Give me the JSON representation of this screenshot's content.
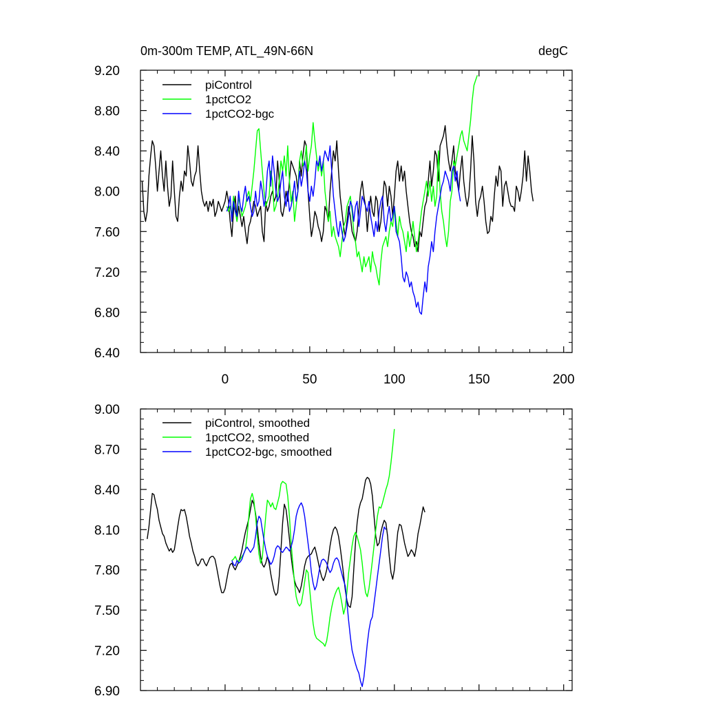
{
  "chart_data": [
    {
      "type": "line",
      "title": "0m-300m TEMP, ATL_49N-66N",
      "units": "degC",
      "xlim": [
        -50,
        205
      ],
      "ylim": [
        6.4,
        9.2
      ],
      "xticks": [
        0,
        50,
        100,
        150,
        200
      ],
      "xtick_labels": [
        "0",
        "50",
        "100",
        "150",
        "200"
      ],
      "yticks": [
        6.4,
        6.8,
        7.2,
        7.6,
        8.0,
        8.4,
        8.8,
        9.2
      ],
      "ytick_labels": [
        "6.40",
        "6.80",
        "7.20",
        "7.60",
        "8.00",
        "8.40",
        "8.80",
        "9.20"
      ],
      "legend_position": "top-left",
      "series": [
        {
          "name": "piControl",
          "color": "#000000",
          "x_start": -49,
          "values": [
            8.1,
            7.8,
            7.7,
            7.8,
            8.15,
            8.35,
            8.5,
            8.45,
            8.25,
            8.0,
            8.2,
            8.4,
            8.15,
            8.0,
            8.3,
            8.05,
            7.85,
            7.95,
            8.3,
            8.0,
            7.75,
            7.7,
            7.95,
            8.1,
            8.0,
            8.2,
            8.15,
            8.45,
            8.3,
            8.1,
            8.05,
            8.15,
            8.2,
            8.45,
            8.2,
            8.0,
            7.9,
            7.85,
            7.9,
            7.8,
            7.9,
            7.85,
            7.92,
            7.75,
            7.8,
            7.9,
            7.85,
            7.8,
            7.85,
            7.9,
            8.0,
            7.9,
            7.7,
            7.55,
            7.8,
            7.95,
            7.7,
            7.85,
            7.75,
            7.65,
            7.75,
            7.6,
            7.48,
            7.65,
            7.7,
            7.8,
            7.9,
            7.85,
            7.75,
            7.8,
            7.85,
            7.6,
            7.5,
            7.9,
            7.8,
            7.85,
            7.95,
            8.0,
            7.9,
            7.95,
            8.3,
            8.1,
            7.8,
            7.75,
            7.85,
            8.0,
            7.9,
            8.1,
            8.3,
            8.25,
            8.2,
            8.15,
            8.0,
            8.3,
            8.15,
            8.35,
            8.5,
            8.45,
            8.0,
            7.75,
            7.55,
            7.65,
            7.8,
            7.75,
            7.65,
            7.6,
            7.5,
            7.6,
            7.85,
            7.8,
            7.7,
            8.0,
            8.2,
            8.4,
            8.3,
            8.5,
            8.2,
            7.95,
            7.8,
            7.65,
            7.55,
            7.7,
            7.85,
            7.75,
            7.6,
            7.55,
            7.5,
            7.6,
            7.8,
            8.0,
            8.1,
            7.95,
            7.85,
            7.6,
            7.8,
            7.95,
            7.8,
            7.75,
            7.95,
            7.9,
            7.6,
            7.7,
            7.9,
            8.1,
            8.05,
            7.85,
            8.05,
            7.95,
            7.75,
            7.95,
            8.2,
            8.3,
            8.1,
            8.25,
            8.1,
            8.2,
            8.0,
            7.85,
            7.7,
            7.6,
            7.55,
            7.45,
            7.5,
            7.4,
            7.6,
            7.55,
            7.7,
            7.85,
            7.9,
            8.1,
            8.3,
            8.05,
            8.2,
            8.4,
            8.35,
            8.1,
            8.45,
            8.5,
            8.55,
            8.65,
            8.45,
            8.3,
            8.2,
            8.3,
            8.45,
            8.2,
            8.1,
            8.0,
            8.2,
            8.35,
            8.1,
            7.95,
            7.85,
            7.95,
            8.2,
            8.55,
            8.3,
            7.9,
            7.75,
            7.9,
            7.95,
            8.05,
            7.9,
            7.7,
            7.58,
            7.6,
            7.75,
            7.7,
            7.95,
            8.15,
            8.05,
            8.25,
            8.2,
            7.85,
            8.05,
            8.1,
            8.0,
            7.9,
            7.85,
            7.85,
            7.8,
            8.05,
            8.0,
            7.9,
            8.0,
            8.15,
            8.4,
            8.1,
            8.35,
            8.2,
            8.0,
            7.9
          ]
        },
        {
          "name": "1pctCO2",
          "color": "#00ff00",
          "x_start": 1,
          "values": [
            7.85,
            7.8,
            7.85,
            7.75,
            7.95,
            7.8,
            7.7,
            7.95,
            7.85,
            7.75,
            7.8,
            7.85,
            7.95,
            8.0,
            7.9,
            8.05,
            8.2,
            8.4,
            8.6,
            8.62,
            8.4,
            8.2,
            8.0,
            7.85,
            7.9,
            7.95,
            8.2,
            8.1,
            7.8,
            7.85,
            7.95,
            8.1,
            8.3,
            8.2,
            8.35,
            8.15,
            8.45,
            8.1,
            7.9,
            8.0,
            7.7,
            7.85,
            8.0,
            8.3,
            8.4,
            8.25,
            8.3,
            8.45,
            8.2,
            8.35,
            8.45,
            8.68,
            8.5,
            8.35,
            8.2,
            8.3,
            8.15,
            8.3,
            8.0,
            7.85,
            7.7,
            7.8,
            7.55,
            7.65,
            7.55,
            7.5,
            7.45,
            7.35,
            7.5,
            7.65,
            7.7,
            7.85,
            7.9,
            7.95,
            7.8,
            7.6,
            7.5,
            7.35,
            7.4,
            7.3,
            7.2,
            7.35,
            7.25,
            7.3,
            7.35,
            7.2,
            7.4,
            7.3,
            7.25,
            7.15,
            7.07,
            7.3,
            7.45,
            7.5,
            7.55,
            7.45,
            7.6,
            7.7,
            7.65,
            7.85,
            7.7,
            7.55,
            7.75,
            7.65,
            7.6,
            7.5,
            7.4,
            7.6,
            7.45,
            7.55,
            7.7,
            7.55,
            7.4,
            7.5,
            7.65,
            7.8,
            7.9,
            8.0,
            8.1,
            7.95,
            8.1,
            7.9,
            8.05,
            7.85,
            7.95,
            8.4,
            8.0,
            7.8,
            7.7,
            7.55,
            7.45,
            7.6,
            7.9,
            8.0,
            8.3,
            8.25,
            8.35,
            8.45,
            8.55,
            8.6,
            8.5,
            8.45,
            8.4,
            8.55,
            8.7,
            8.9,
            9.05,
            9.1,
            9.15
          ]
        },
        {
          "name": "1pctCO2-bgc",
          "color": "#0000ff",
          "x_start": 1,
          "values": [
            7.8,
            7.85,
            7.95,
            7.7,
            7.9,
            7.8,
            7.75,
            8.0,
            7.85,
            7.8,
            7.95,
            8.05,
            7.9,
            7.95,
            7.85,
            7.75,
            7.8,
            8.0,
            7.85,
            7.9,
            8.1,
            8.0,
            7.85,
            7.95,
            8.2,
            8.3,
            8.05,
            8.35,
            8.2,
            8.0,
            7.9,
            7.95,
            8.1,
            8.2,
            7.95,
            7.85,
            8.0,
            7.8,
            7.85,
            7.95,
            8.1,
            7.9,
            8.0,
            8.2,
            8.05,
            8.15,
            8.3,
            8.2,
            8.0,
            7.9,
            8.05,
            7.95,
            8.1,
            8.3,
            8.25,
            8.35,
            8.2,
            8.3,
            8.4,
            8.35,
            8.3,
            8.45,
            8.2,
            7.95,
            7.8,
            7.65,
            7.55,
            7.7,
            7.6,
            7.5,
            7.55,
            7.65,
            7.75,
            7.9,
            7.85,
            7.7,
            7.85,
            7.9,
            7.65,
            7.8,
            7.95,
            7.9,
            7.85,
            7.8,
            7.9,
            7.75,
            7.65,
            7.55,
            7.7,
            7.6,
            7.8,
            7.9,
            7.95,
            7.7,
            7.6,
            7.75,
            7.85,
            7.7,
            7.75,
            7.85,
            7.6,
            7.55,
            7.5,
            7.35,
            7.15,
            7.1,
            7.2,
            7.15,
            7.05,
            7.1,
            7.0,
            6.95,
            6.85,
            6.9,
            6.8,
            6.78,
            6.95,
            7.1,
            7.0,
            7.25,
            7.35,
            7.5,
            7.4,
            7.6,
            7.75,
            7.85,
            7.95,
            8.05,
            8.1,
            8.2,
            8.15,
            8.1,
            8.0,
            8.2,
            8.25,
            8.1,
            8.2,
            8.0,
            7.9
          ]
        }
      ]
    },
    {
      "type": "line",
      "title": "",
      "xlim": [
        -50,
        205
      ],
      "ylim": [
        6.9,
        9.0
      ],
      "xticks": [
        0,
        50,
        100,
        150,
        200
      ],
      "yticks": [
        6.9,
        7.2,
        7.5,
        7.8,
        8.1,
        8.4,
        8.7,
        9.0
      ],
      "ytick_labels": [
        "6.90",
        "7.20",
        "7.50",
        "7.80",
        "8.10",
        "8.40",
        "8.70",
        "9.00"
      ],
      "legend_position": "top-left",
      "series": [
        {
          "name": "piControl, smoothed",
          "color": "#000000",
          "x_start": -46,
          "values": [
            8.03,
            8.12,
            8.25,
            8.37,
            8.36,
            8.3,
            8.25,
            8.17,
            8.12,
            8.07,
            8.05,
            8.0,
            7.97,
            7.94,
            7.96,
            7.93,
            7.95,
            8.03,
            8.12,
            8.2,
            8.25,
            8.24,
            8.25,
            8.2,
            8.13,
            8.05,
            8.0,
            7.94,
            7.9,
            7.85,
            7.83,
            7.85,
            7.88,
            7.88,
            7.85,
            7.83,
            7.86,
            7.89,
            7.9,
            7.9,
            7.88,
            7.82,
            7.75,
            7.68,
            7.63,
            7.63,
            7.66,
            7.73,
            7.8,
            7.84,
            7.85,
            7.82,
            7.8,
            7.83,
            7.86,
            7.9,
            7.95,
            8.02,
            8.08,
            8.13,
            8.18,
            8.25,
            8.32,
            8.29,
            8.22,
            8.12,
            8.0,
            7.9,
            7.84,
            7.82,
            7.85,
            7.9,
            7.85,
            7.77,
            7.7,
            7.64,
            7.61,
            7.63,
            7.75,
            7.95,
            8.15,
            8.29,
            8.25,
            8.15,
            8.03,
            7.9,
            7.8,
            7.72,
            7.68,
            7.66,
            7.63,
            7.68,
            7.75,
            7.83,
            7.88,
            7.9,
            7.91,
            7.92,
            7.95,
            7.97,
            7.92,
            7.86,
            7.8,
            7.75,
            7.72,
            7.75,
            7.8,
            7.88,
            7.98,
            8.05,
            8.1,
            8.12,
            8.1,
            8.05,
            7.97,
            7.87,
            7.76,
            7.65,
            7.57,
            7.53,
            7.52,
            7.6,
            7.8,
            8.0,
            8.15,
            8.25,
            8.3,
            8.33,
            8.4,
            8.47,
            8.49,
            8.48,
            8.44,
            8.35,
            8.2,
            8.05,
            7.98,
            8.0,
            8.08,
            8.13,
            8.17,
            8.15,
            8.05,
            7.9,
            7.78,
            7.73,
            7.8,
            7.95,
            8.08,
            8.14,
            8.13,
            8.07,
            8.0,
            7.95,
            7.9,
            7.92,
            7.95,
            7.93,
            7.9,
            7.97,
            8.07,
            8.13,
            8.2,
            8.27,
            8.23
          ]
        },
        {
          "name": "1pctCO2, smoothed",
          "color": "#00ff00",
          "x_start": 4,
          "values": [
            7.87,
            7.88,
            7.9,
            7.87,
            7.86,
            7.88,
            7.9,
            7.92,
            7.95,
            8.05,
            8.2,
            8.33,
            8.37,
            8.32,
            8.2,
            8.05,
            7.92,
            7.85,
            7.89,
            8.05,
            8.2,
            8.32,
            8.3,
            8.27,
            8.3,
            8.26,
            8.25,
            8.3,
            8.35,
            8.44,
            8.46,
            8.45,
            8.44,
            8.35,
            8.2,
            8.0,
            7.85,
            7.7,
            7.6,
            7.55,
            7.53,
            7.55,
            7.62,
            7.71,
            7.8,
            7.78,
            7.65,
            7.52,
            7.4,
            7.32,
            7.29,
            7.28,
            7.27,
            7.26,
            7.25,
            7.23,
            7.27,
            7.35,
            7.45,
            7.52,
            7.58,
            7.62,
            7.65,
            7.67,
            7.62,
            7.55,
            7.47,
            7.52,
            7.64,
            7.78,
            7.88,
            7.98,
            8.05,
            8.08,
            8.05,
            8.0,
            7.95,
            7.85,
            7.72,
            7.63,
            7.6,
            7.66,
            7.76,
            7.87,
            7.98,
            8.1,
            8.2,
            8.27,
            8.26,
            8.3,
            8.35,
            8.4,
            8.44,
            8.5,
            8.6,
            8.72,
            8.85
          ]
        },
        {
          "name": "1pctCO2-bgc, smoothed",
          "color": "#0000ff",
          "x_start": 4,
          "values": [
            7.87,
            7.84,
            7.83,
            7.87,
            7.85,
            7.86,
            7.88,
            7.92,
            7.95,
            7.97,
            7.95,
            7.93,
            7.95,
            7.97,
            8.05,
            8.15,
            8.2,
            8.18,
            8.1,
            8.02,
            7.95,
            7.9,
            7.87,
            7.84,
            7.86,
            7.9,
            7.96,
            7.98,
            7.97,
            7.94,
            7.93,
            7.95,
            7.97,
            7.96,
            7.94,
            7.97,
            8.02,
            8.1,
            8.2,
            8.25,
            8.28,
            8.3,
            8.27,
            8.2,
            8.1,
            8.0,
            7.9,
            7.78,
            7.7,
            7.65,
            7.68,
            7.75,
            7.82,
            7.87,
            7.88,
            7.87,
            7.85,
            7.81,
            7.78,
            7.8,
            7.85,
            7.88,
            7.89,
            7.87,
            7.82,
            7.77,
            7.72,
            7.68,
            7.55,
            7.42,
            7.3,
            7.2,
            7.15,
            7.1,
            7.06,
            7.03,
            6.97,
            6.93,
            7.0,
            7.12,
            7.25,
            7.35,
            7.42,
            7.45,
            7.55,
            7.65,
            7.75,
            7.85,
            7.95,
            8.05,
            8.12,
            8.1
          ]
        }
      ]
    }
  ]
}
